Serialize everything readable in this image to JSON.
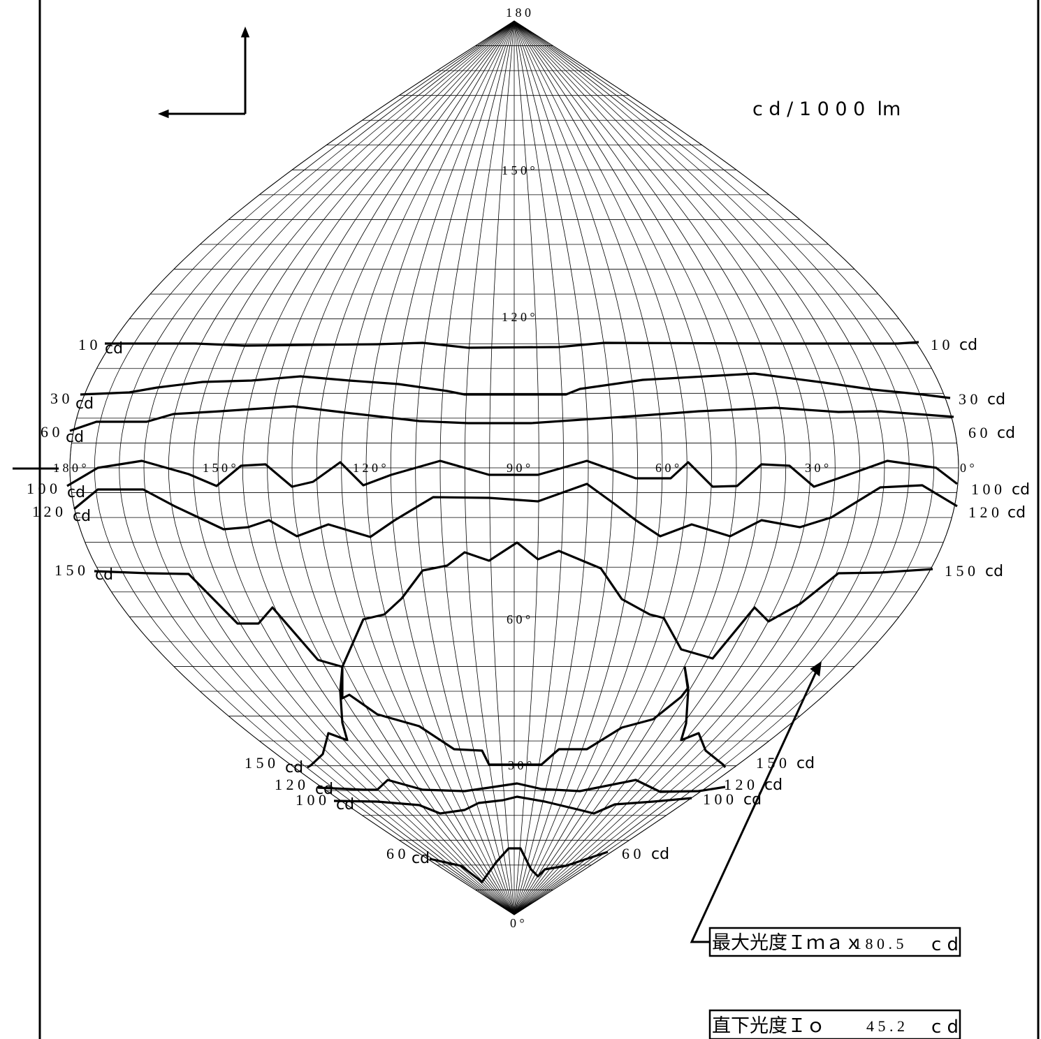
{
  "unit_label": "c d / 1 0 0 0  lm",
  "angle_labels": {
    "top": "1 8 0",
    "center_150": "1 5 0 °",
    "center_120": "1 2 0 °",
    "center_60": "6 0 °",
    "center_30": "3 0 °",
    "bottom": "0 °",
    "equator": [
      "1 8 0 °",
      "1 5 0 °",
      "1 2 0 °",
      "9 0 °",
      "6 0 °",
      "3 0 °",
      "0 °"
    ]
  },
  "contour_labels": {
    "left": [
      {
        "num": "1 0",
        "cd": "cd"
      },
      {
        "num": "3 0",
        "cd": "cd"
      },
      {
        "num": "6 0",
        "cd": "cd"
      },
      {
        "num": "1 0 0",
        "cd": "cd"
      },
      {
        "num": "1 2 0",
        "cd": "cd"
      },
      {
        "num": "1 5 0",
        "cd": "cd"
      }
    ],
    "right": [
      {
        "num": "1 0",
        "cd": "cd"
      },
      {
        "num": "3 0",
        "cd": "cd"
      },
      {
        "num": "6 0",
        "cd": "cd"
      },
      {
        "num": "1 0 0",
        "cd": "cd"
      },
      {
        "num": "1 2 0",
        "cd": "cd"
      },
      {
        "num": "1 5 0",
        "cd": "cd"
      }
    ],
    "lower_left": [
      {
        "num": "1 5 0",
        "cd": "cd"
      },
      {
        "num": "1 2 0",
        "cd": "cd"
      },
      {
        "num": "1 0 0",
        "cd": "cd"
      },
      {
        "num": "6 0",
        "cd": "cd"
      }
    ],
    "lower_right": [
      {
        "num": "1 5 0",
        "cd": "cd"
      },
      {
        "num": "1 2 0",
        "cd": "cd"
      },
      {
        "num": "1 0 0",
        "cd": "cd"
      },
      {
        "num": "6 0",
        "cd": "cd"
      }
    ]
  },
  "imax": {
    "label": "最大光度Ｉｍａｘ",
    "value": "1 8 0 . 5",
    "unit": "c d"
  },
  "io": {
    "label": "直下光度Ｉｏ",
    "value": "4 5 . 2",
    "unit": "c d"
  }
}
